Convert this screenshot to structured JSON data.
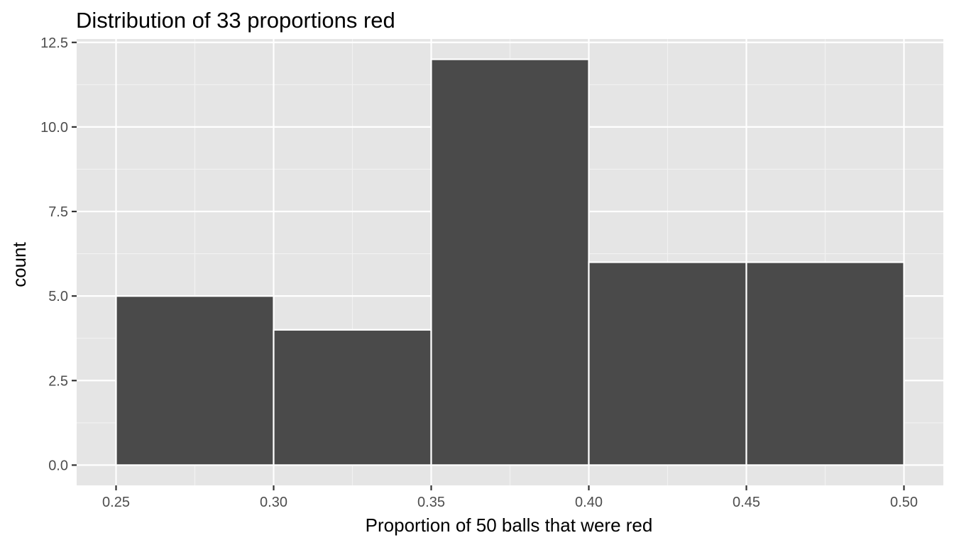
{
  "chart_data": {
    "type": "bar",
    "subtype": "histogram",
    "title": "Distribution of 33 proportions red",
    "xlabel": "Proportion of 50 balls that were red",
    "ylabel": "count",
    "bins": [
      {
        "x_min": 0.25,
        "x_max": 0.3,
        "count": 5
      },
      {
        "x_min": 0.3,
        "x_max": 0.35,
        "count": 4
      },
      {
        "x_min": 0.35,
        "x_max": 0.4,
        "count": 12
      },
      {
        "x_min": 0.4,
        "x_max": 0.45,
        "count": 6
      },
      {
        "x_min": 0.45,
        "x_max": 0.5,
        "count": 6
      }
    ],
    "xlim": [
      0.2375,
      0.5125
    ],
    "ylim": [
      -0.6,
      12.6
    ],
    "x_ticks": [
      0.25,
      0.3,
      0.35,
      0.4,
      0.45,
      0.5
    ],
    "x_tick_labels": [
      "0.25",
      "0.30",
      "0.35",
      "0.40",
      "0.45",
      "0.50"
    ],
    "y_ticks": [
      0.0,
      2.5,
      5.0,
      7.5,
      10.0,
      12.5
    ],
    "y_tick_labels": [
      "0.0",
      "2.5",
      "5.0",
      "7.5",
      "10.0",
      "12.5"
    ],
    "x_minor_ticks": [
      0.275,
      0.325,
      0.375,
      0.425,
      0.475
    ],
    "y_minor_ticks": [
      1.25,
      3.75,
      6.25,
      8.75,
      11.25
    ],
    "grid": true,
    "legend": "none",
    "colors": {
      "panel_background": "#e5e5e5",
      "grid_major": "#ffffff",
      "grid_minor": "#f2f2f2",
      "bar_fill": "#4a4a4a",
      "bar_outline": "#ffffff",
      "tick_text": "#4d4d4d",
      "axis_tick": "#333333"
    }
  }
}
